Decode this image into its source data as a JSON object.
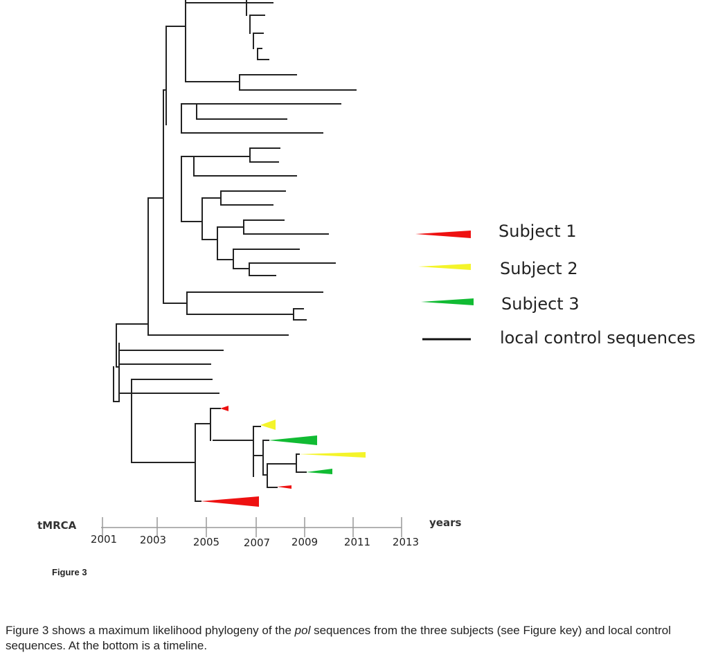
{
  "legend": {
    "items": [
      {
        "label": "Subject 1",
        "color": "#ee1111"
      },
      {
        "label": "Subject 2",
        "color": "#f4f42a"
      },
      {
        "label": "Subject 3",
        "color": "#11bb33"
      },
      {
        "label": "local control sequences",
        "color": "#111111"
      }
    ]
  },
  "axis": {
    "left_label": "tMRCA",
    "right_label": "years",
    "ticks": [
      "2001",
      "2003",
      "2005",
      "2007",
      "2009",
      "2011",
      "2013"
    ]
  },
  "figure_label": "Figure 3",
  "caption": {
    "before": "Figure 3 shows a maximum likelihood phylogeny of the ",
    "italic": "pol",
    "after": " sequences from the three subjects (see Figure key) and local control sequences. At the bottom is a timeline."
  }
}
